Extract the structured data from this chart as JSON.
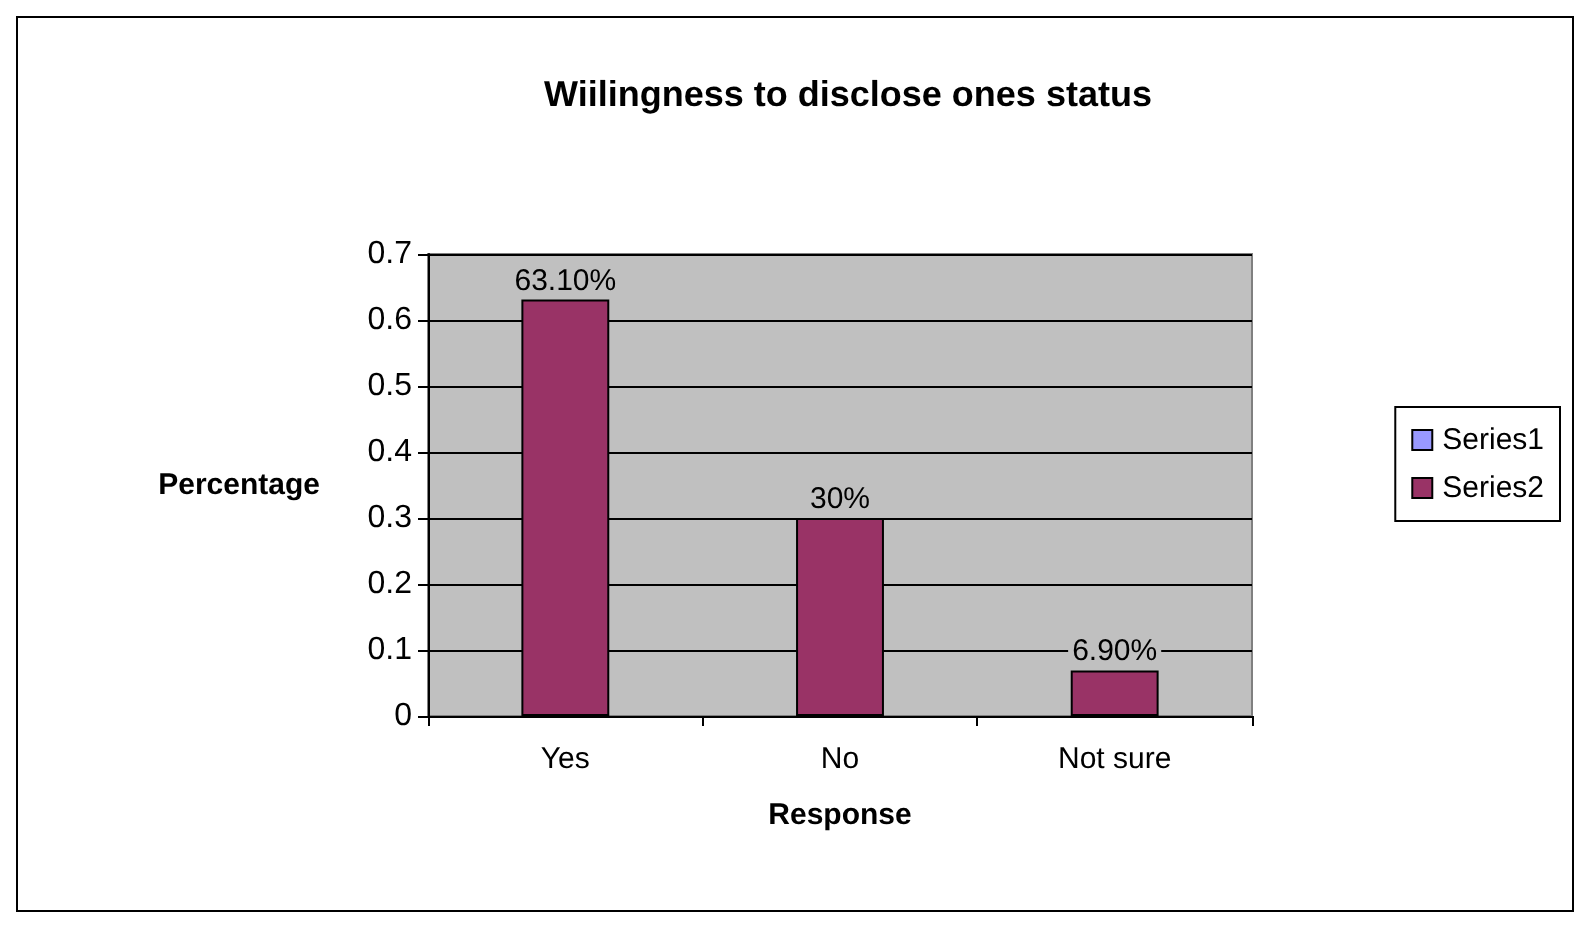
{
  "chart_data": {
    "type": "bar",
    "title": "Wiilingness to disclose ones status",
    "xlabel": "Response",
    "ylabel": "Percentage",
    "categories": [
      "Yes",
      "No",
      "Not sure"
    ],
    "series": [
      {
        "name": "Series1",
        "color": "#9999ff",
        "values": [
          null,
          null,
          null
        ]
      },
      {
        "name": "Series2",
        "color": "#993366",
        "values": [
          0.631,
          0.3,
          0.069
        ],
        "value_labels": [
          "63.10%",
          "30%",
          "6.90%"
        ]
      }
    ],
    "ylim": [
      0,
      0.7
    ],
    "yticks": [
      0,
      0.1,
      0.2,
      0.3,
      0.4,
      0.5,
      0.6,
      0.7
    ],
    "grid": "y",
    "legend": "right"
  }
}
